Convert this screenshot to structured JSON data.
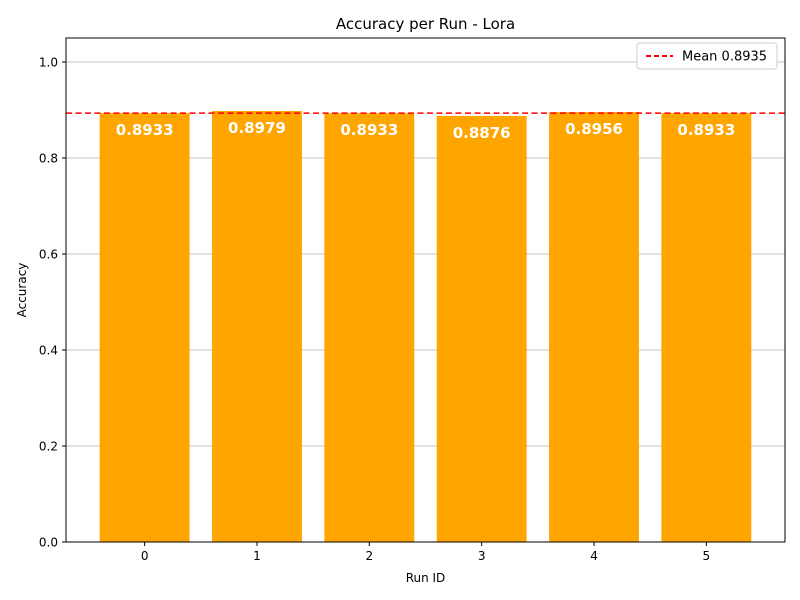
{
  "chart_data": {
    "type": "bar",
    "title": "Accuracy per Run - Lora",
    "xlabel": "Run ID",
    "ylabel": "Accuracy",
    "categories": [
      "0",
      "1",
      "2",
      "3",
      "4",
      "5"
    ],
    "values": [
      0.8933,
      0.8979,
      0.8933,
      0.8876,
      0.8956,
      0.8933
    ],
    "value_labels": [
      "0.8933",
      "0.8979",
      "0.8933",
      "0.8876",
      "0.8956",
      "0.8933"
    ],
    "ylim": [
      0,
      1.05
    ],
    "yticks": [
      0.0,
      0.2,
      0.4,
      0.6,
      0.8,
      1.0
    ],
    "ytick_labels": [
      "0.0",
      "0.2",
      "0.4",
      "0.6",
      "0.8",
      "1.0"
    ],
    "mean": 0.8935,
    "legend": {
      "placement": "top-right",
      "entries": [
        {
          "label": "Mean 0.8935",
          "style": "dashed-line",
          "color": "#ff0000"
        }
      ]
    },
    "grid": {
      "y": true,
      "x": false
    },
    "colors": {
      "bar": "#ffa500",
      "mean_line": "#ff0000",
      "value_label": "#ffffff",
      "grid": "#b0b0b0"
    }
  }
}
